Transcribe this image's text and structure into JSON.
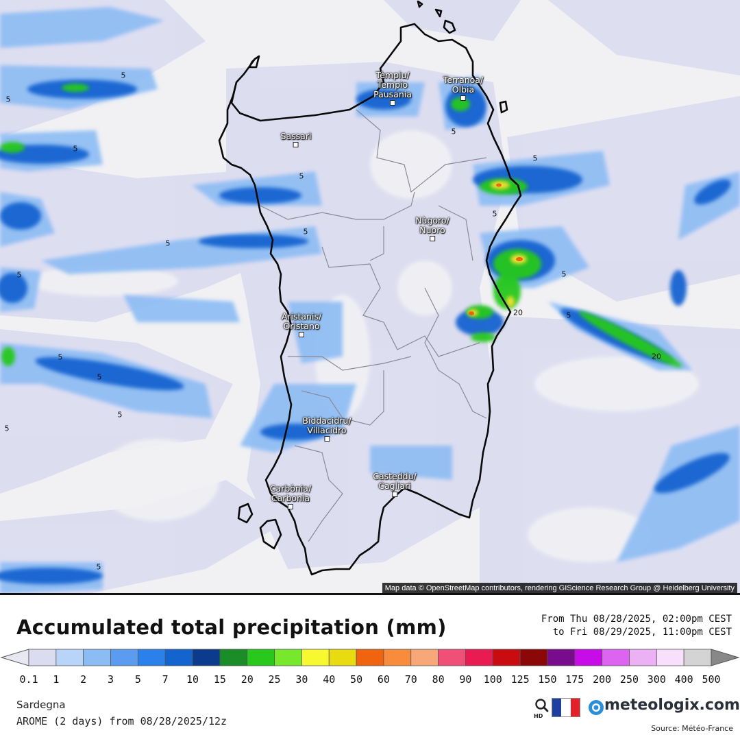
{
  "map": {
    "attribution": "Map data © OpenStreetMap contributors, rendering GIScience Research Group @ Heidelberg University",
    "cities": [
      {
        "line1": "Tèmpiu/",
        "line2": "Tempio",
        "line3": "Pausania"
      },
      {
        "line1": "Terranoa/",
        "line2": "Olbia"
      },
      {
        "line1": "Sassari"
      },
      {
        "line1": "Nùgoro/",
        "line2": "Nuoro"
      },
      {
        "line1": "Aristanis/",
        "line2": "Oristano"
      },
      {
        "line1": "Bìddacidru/",
        "line2": "Villacidro"
      },
      {
        "line1": "Casteddu/",
        "line2": "Cagliari"
      },
      {
        "line1": "Carbònia/",
        "line2": "Carbonia"
      }
    ],
    "contour_labels": [
      "5",
      "5",
      "5",
      "5",
      "5",
      "5",
      "5",
      "5",
      "5",
      "5",
      "5",
      "5",
      "5",
      "5",
      "5",
      "5",
      "5",
      "20",
      "20"
    ]
  },
  "legend": {
    "title": "Accumulated total precipitation (mm)",
    "period_from": "From Thu 08/28/2025, 02:00pm CEST",
    "period_to": "to Fri 08/29/2025, 11:00pm CEST",
    "ticks": [
      "0.1",
      "1",
      "2",
      "3",
      "5",
      "7",
      "10",
      "15",
      "20",
      "25",
      "30",
      "40",
      "50",
      "60",
      "70",
      "80",
      "90",
      "100",
      "125",
      "150",
      "175",
      "200",
      "250",
      "300",
      "400",
      "500"
    ],
    "colors": [
      "#dcdcf0",
      "#b8d4f8",
      "#8cbcf4",
      "#5c9cf0",
      "#2c80ec",
      "#1464d0",
      "#0c3a8c",
      "#1a8c28",
      "#28c81c",
      "#78e82c",
      "#f8f830",
      "#e8dc10",
      "#f06410",
      "#f88c3c",
      "#f8a878",
      "#f05078",
      "#e81c50",
      "#c80c10",
      "#8c0808",
      "#780c8c",
      "#c80ce8",
      "#dc64f0",
      "#ecb0f4",
      "#f8e0fc",
      "#d4d4d4"
    ],
    "region": "Sardegna",
    "model": "AROME (2 days) from 08/28/2025/12z",
    "brand": "meteologix.com",
    "source": "Source: Météo-France"
  }
}
